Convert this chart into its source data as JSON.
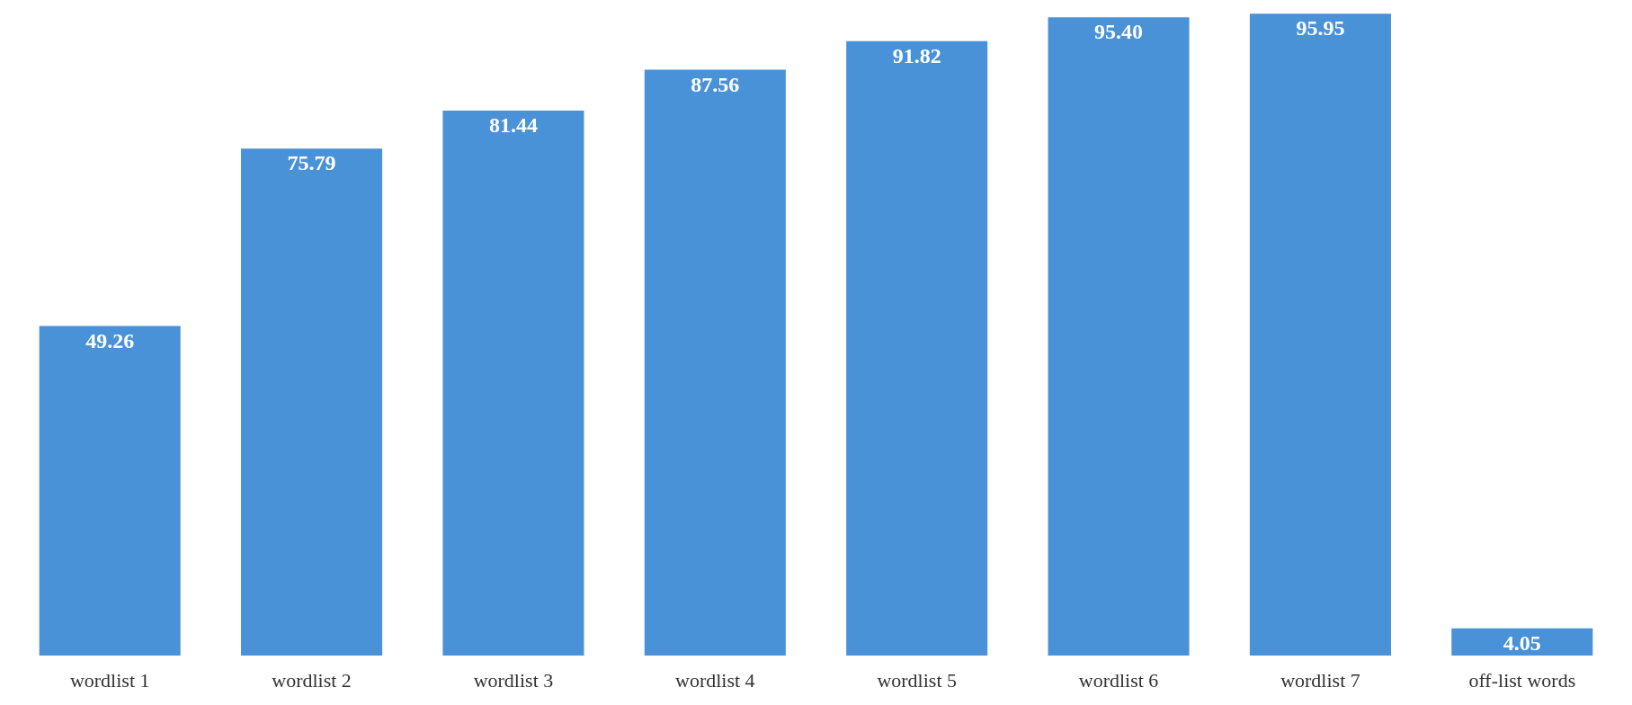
{
  "chart_data": {
    "type": "bar",
    "categories": [
      "wordlist 1",
      "wordlist 2",
      "wordlist 3",
      "wordlist 4",
      "wordlist 5",
      "wordlist 6",
      "wordlist 7",
      "off-list words"
    ],
    "values": [
      49.26,
      75.79,
      81.44,
      87.56,
      91.82,
      95.4,
      95.95,
      4.05
    ],
    "value_labels": [
      "49.26",
      "75.79",
      "81.44",
      "87.56",
      "91.82",
      "95.40",
      "95.95",
      "4.05"
    ],
    "color": "#4a92d8"
  }
}
